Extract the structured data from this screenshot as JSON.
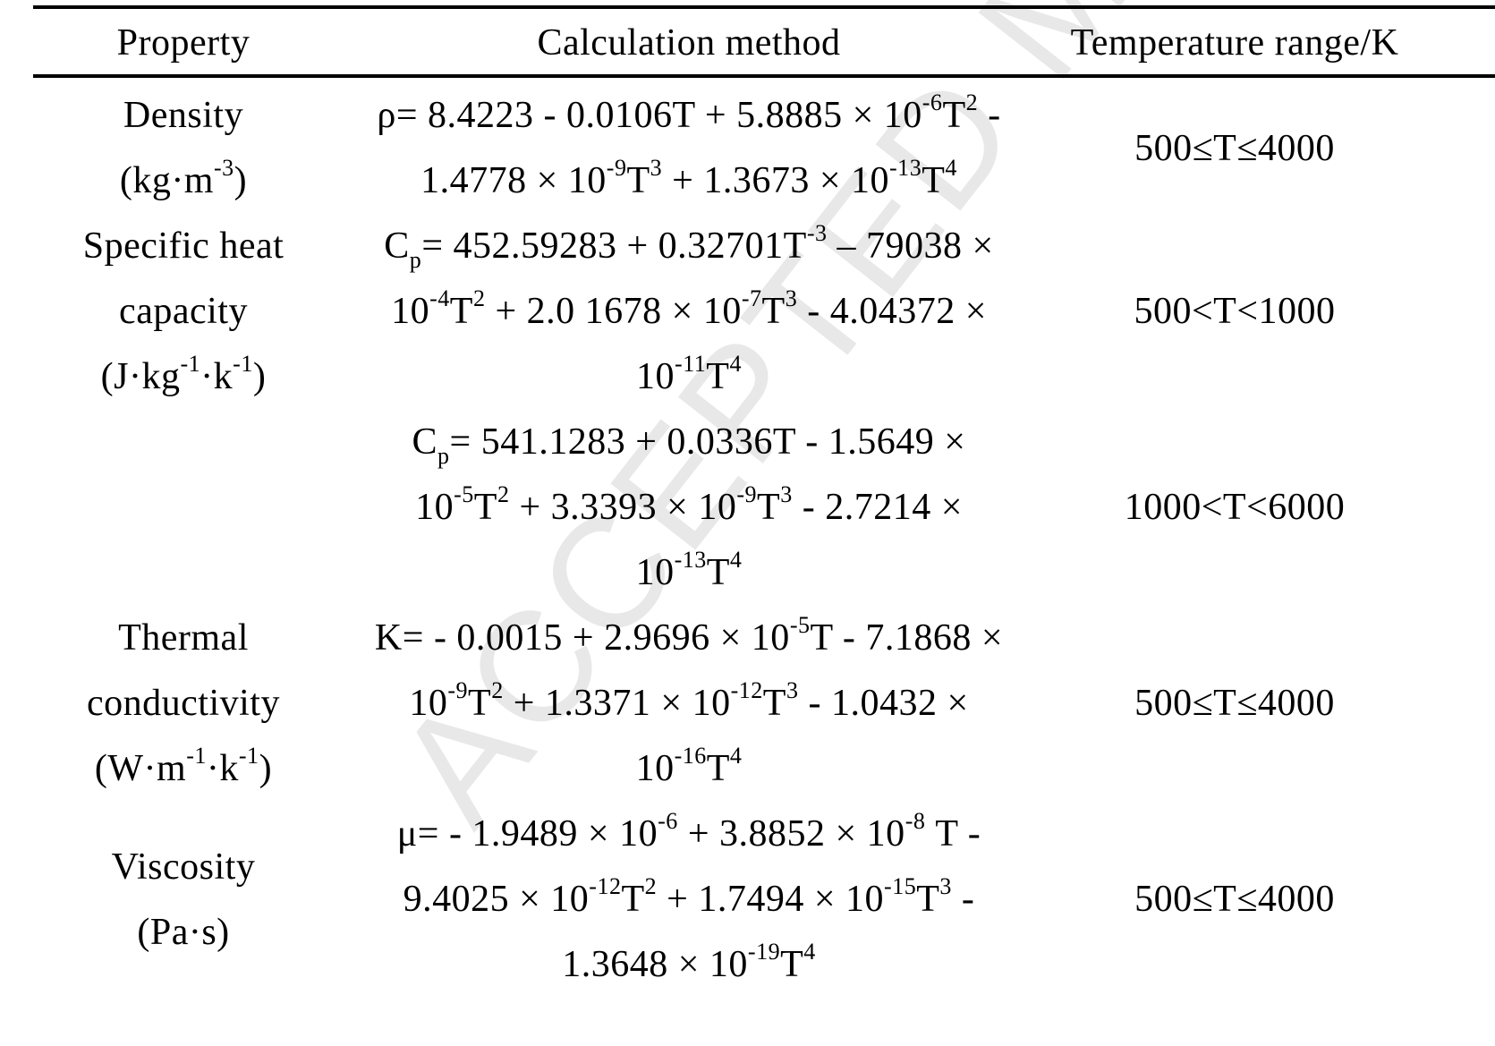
{
  "table": {
    "headers": {
      "property": "Property",
      "calculation": "Calculation method",
      "range": "Temperature range/K"
    },
    "rows": [
      {
        "property_lines": [
          "Density",
          "(kg·m<sup>-3</sup>)"
        ],
        "calc_lines": [
          "ρ= 8.4223 - 0.0106T + 5.8885 × 10<sup>-6</sup>T<sup>2</sup> -",
          "1.4778 × 10<sup>-9</sup>T<sup>3</sup> + 1.3673 × 10<sup>-13</sup>T<sup>4</sup>"
        ],
        "range": "500≤T≤4000"
      },
      {
        "property_lines": [
          "Specific heat",
          "capacity",
          "(J·kg<sup>-1</sup>·k<sup>-1</sup>)"
        ],
        "calc_lines": [
          "C<sub>p</sub>= 452.59283 + 0.32701T<sup>-3</sup> – 79038 ×",
          "10<sup>-4</sup>T<sup>2</sup> + 2.0 1678 × 10<sup>-7</sup>T<sup>3</sup> - 4.04372 ×",
          "10<sup>-11</sup>T<sup>4</sup>"
        ],
        "range": "500<T<1000"
      },
      {
        "property_lines": [],
        "calc_lines": [
          "C<sub>p</sub>= 541.1283 + 0.0336T - 1.5649 ×",
          "10<sup>-5</sup>T<sup>2</sup> + 3.3393 × 10<sup>-9</sup>T<sup>3</sup> - 2.7214 ×",
          "10<sup>-13</sup>T<sup>4</sup>"
        ],
        "range": "1000<T<6000"
      },
      {
        "property_lines": [
          "Thermal",
          "conductivity",
          "(W·m<sup>-1</sup>·k<sup>-1</sup>)"
        ],
        "calc_lines": [
          "K= - 0.0015 + 2.9696 × 10<sup>-5</sup>T - 7.1868 ×",
          "10<sup>-9</sup>T<sup>2</sup> + 1.3371 × 10<sup>-12</sup>T<sup>3</sup> - 1.0432 ×",
          "10<sup>-16</sup>T<sup>4</sup>"
        ],
        "range": "500≤T≤4000"
      },
      {
        "property_lines": [
          "Viscosity",
          "(Pa·s)"
        ],
        "calc_lines": [
          "μ= - 1.9489 × 10<sup>-6</sup> + 3.8852 × 10<sup>-8</sup> T -",
          "9.4025 × 10<sup>-12</sup>T<sup>2</sup> + 1.7494 × 10<sup>-15</sup>T<sup>3</sup> -",
          "1.3648 × 10<sup>-19</sup>T<sup>4</sup>"
        ],
        "range": "500≤T≤4000"
      }
    ]
  },
  "watermark": "ACCEPTED MANUSCRIPT"
}
